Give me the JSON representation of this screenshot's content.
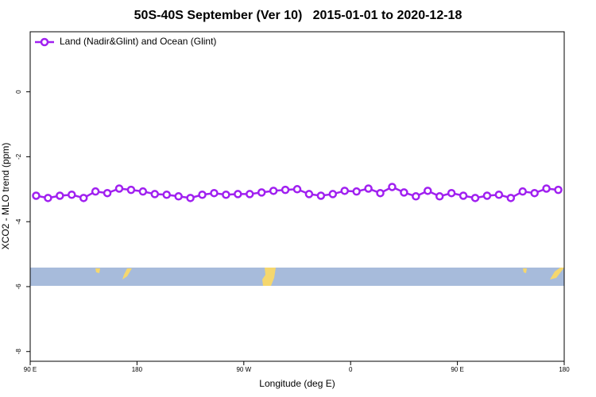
{
  "chart_data": {
    "type": "line",
    "title": "50S-40S September (Ver 10)   2015-01-01 to 2020-12-18",
    "x_label": "Longitude (deg E)",
    "y_label": "XCO2 - MLO trend (ppm)",
    "x": [
      95,
      105,
      115,
      125,
      135,
      145,
      155,
      165,
      175,
      185,
      195,
      205,
      215,
      225,
      235,
      245,
      255,
      265,
      275,
      285,
      295,
      305,
      315,
      325,
      335,
      345,
      355,
      365,
      375,
      385,
      395,
      405,
      415,
      425,
      435,
      445,
      455,
      465,
      475,
      485,
      495,
      505,
      515,
      525,
      535
    ],
    "series": [
      {
        "name": "Land (Nadir&Glint) and Ocean (Glint)",
        "color": "#a020f0",
        "values": [
          -3.2,
          -3.27,
          -3.2,
          -3.17,
          -3.27,
          -3.07,
          -3.12,
          -2.98,
          -3.02,
          -3.07,
          -3.15,
          -3.17,
          -3.22,
          -3.27,
          -3.17,
          -3.12,
          -3.17,
          -3.15,
          -3.15,
          -3.1,
          -3.05,
          -3.02,
          -3.0,
          -3.15,
          -3.2,
          -3.15,
          -3.05,
          -3.07,
          -2.98,
          -3.12,
          -2.93,
          -3.1,
          -3.22,
          -3.05,
          -3.22,
          -3.12,
          -3.2,
          -3.27,
          -3.2,
          -3.17,
          -3.27,
          -3.07,
          -3.12,
          -2.98,
          -3.02
        ]
      }
    ],
    "xlim": [
      90,
      540
    ],
    "xticks": [
      {
        "value": 90,
        "label": "90 E"
      },
      180,
      {
        "value": 270,
        "label": "90 W"
      },
      {
        "value": 360,
        "label": "0"
      },
      {
        "value": 450,
        "label": "90 E"
      },
      {
        "value": 540,
        "label": "180"
      }
    ],
    "ylim": [
      -8.3,
      1.85
    ],
    "yticks": [
      0,
      -2,
      -4,
      -6,
      -8
    ],
    "legend": "top-left"
  }
}
